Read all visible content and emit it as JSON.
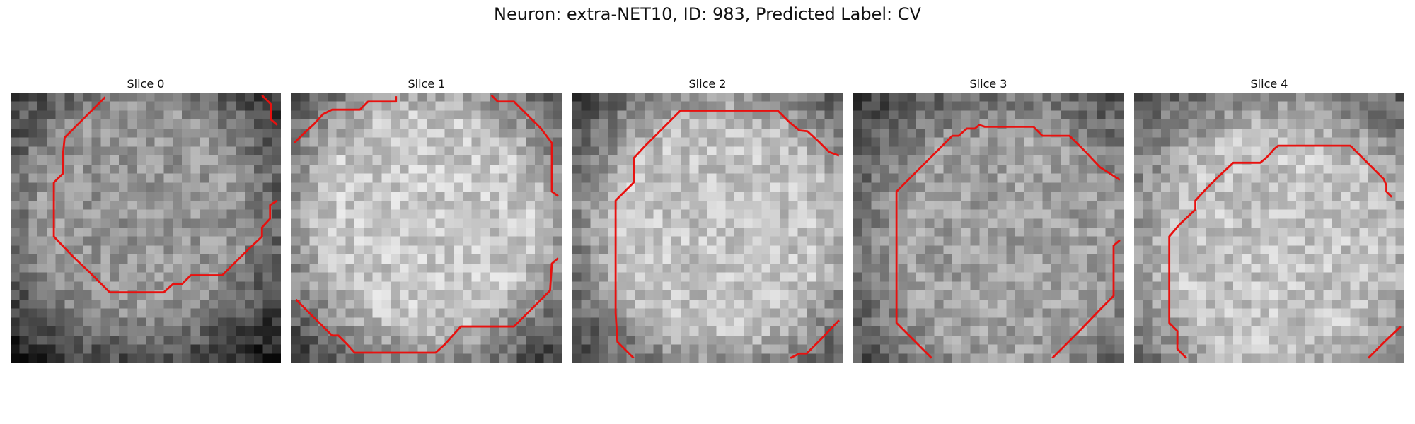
{
  "figure": {
    "title": "Neuron: extra-NET10, ID: 983, Predicted Label: CV"
  },
  "colors": {
    "contour": "#e8110f",
    "background": "#ffffff"
  },
  "panels": [
    {
      "title": "Slice 0"
    },
    {
      "title": "Slice 1"
    },
    {
      "title": "Slice 2"
    },
    {
      "title": "Slice 3"
    },
    {
      "title": "Slice 4"
    }
  ]
}
